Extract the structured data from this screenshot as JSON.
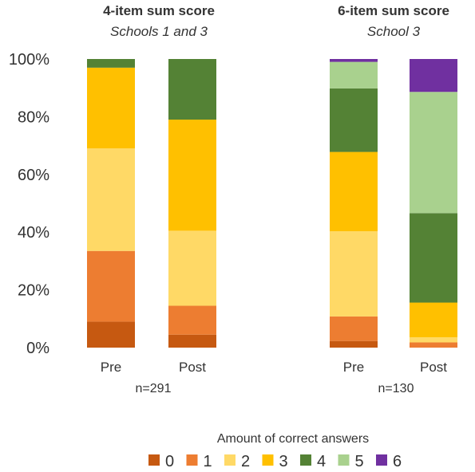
{
  "chart_data": {
    "type": "bar",
    "stacked": true,
    "percent": true,
    "ylim": [
      0,
      100
    ],
    "yticks": [
      "0%",
      "20%",
      "40%",
      "60%",
      "80%",
      "100%"
    ],
    "grid": false,
    "legend_position": "bottom",
    "legend_title": "Amount of correct answers",
    "levels": [
      "0",
      "1",
      "2",
      "3",
      "4",
      "5",
      "6"
    ],
    "level_colors": [
      "#C65911",
      "#ED7D31",
      "#FFD966",
      "#FFC000",
      "#548235",
      "#A9D18E",
      "#7030A0"
    ],
    "groups": [
      {
        "title": "4-item sum score",
        "subtitle": "Schools 1 and 3",
        "n_label": "n=291",
        "bars": [
          {
            "label": "Pre",
            "values": [
              9,
              24.5,
              35.5,
              28,
              3,
              0,
              0
            ]
          },
          {
            "label": "Post",
            "values": [
              4.5,
              10,
              26,
              38.5,
              21,
              0,
              0
            ]
          }
        ]
      },
      {
        "title": "6-item sum score",
        "subtitle": "School 3",
        "n_label": "n=130",
        "bars": [
          {
            "label": "Pre",
            "values": [
              2.3,
              8.5,
              29.5,
              27.5,
              22,
              9.2,
              1
            ]
          },
          {
            "label": "Post",
            "values": [
              0,
              1.8,
              1.8,
              12,
              31,
              42,
              11.4
            ]
          }
        ]
      }
    ]
  }
}
